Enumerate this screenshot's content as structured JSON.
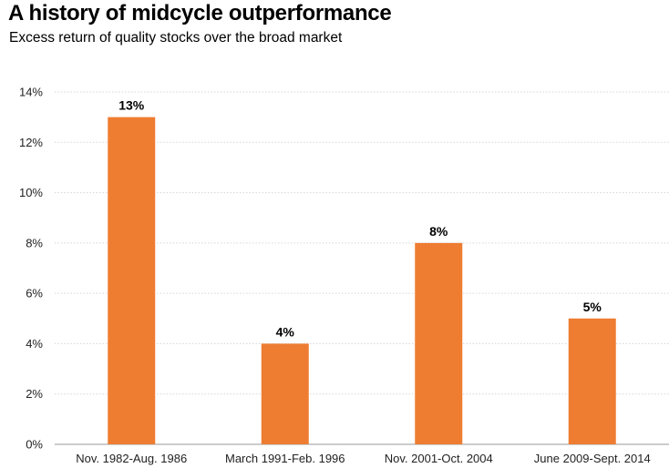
{
  "header": {
    "title": "A history of midcycle outperformance",
    "subtitle": "Excess return of quality stocks over the broad market"
  },
  "colors": {
    "bar": "#EE7D31",
    "grid": "#d6d6d6",
    "axis": "#999999"
  },
  "chart_data": {
    "type": "bar",
    "title": "A history of midcycle outperformance",
    "subtitle": "Excess return of quality stocks over the broad market",
    "categories": [
      "Nov. 1982-Aug. 1986",
      "March 1991-Feb. 1996",
      "Nov. 2001-Oct. 2004",
      "June 2009-Sept. 2014"
    ],
    "values": [
      13,
      4,
      8,
      5
    ],
    "data_labels": [
      "13%",
      "4%",
      "8%",
      "5%"
    ],
    "ylim": [
      0,
      14
    ],
    "yticks": [
      0,
      2,
      4,
      6,
      8,
      10,
      12,
      14
    ],
    "ytick_labels": [
      "0%",
      "2%",
      "4%",
      "6%",
      "8%",
      "10%",
      "12%",
      "14%"
    ],
    "xlabel": "",
    "ylabel": "",
    "grid": true,
    "grid_style": "dotted",
    "legend": "none"
  }
}
